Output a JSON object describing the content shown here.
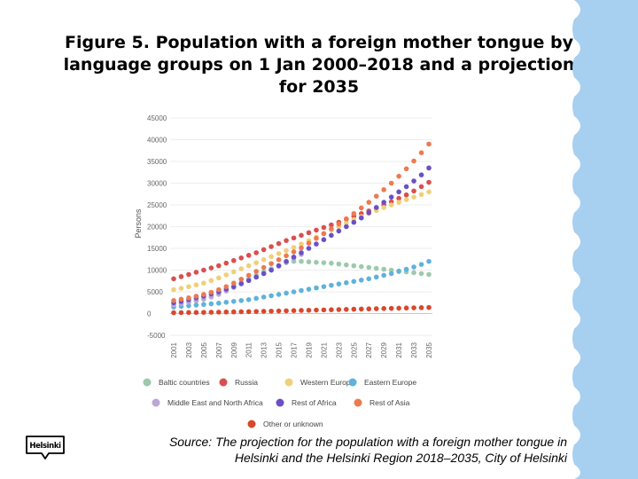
{
  "slide": {
    "title": "Figure 5. Population with a foreign mother tongue by language groups on 1 Jan 2000–2018 and a projection for 2035",
    "source": "Source: The projection for the population with a foreign mother tongue in Helsinki and the Helsinki Region 2018–2035, City of Helsinki",
    "logo_text": "Helsinki",
    "decor_color": "#a7cff0"
  },
  "chart_data": {
    "type": "scatter",
    "title": "",
    "xlabel": "",
    "ylabel": "Persons",
    "ylim": [
      -5000,
      45000
    ],
    "y_ticks": [
      "45000",
      "40000",
      "35000",
      "30000",
      "25000",
      "20000",
      "15000",
      "10000",
      "5000",
      "0",
      "-5000"
    ],
    "x_ticks": [
      "2001",
      "2003",
      "2005",
      "2007",
      "2009",
      "2011",
      "2013",
      "2015",
      "2017",
      "2019",
      "2021",
      "2023",
      "2025",
      "2027",
      "2029",
      "2031",
      "2033",
      "2035"
    ],
    "x_start": 2001,
    "grid": "horizontal",
    "legend_position": "bottom",
    "series": [
      {
        "name": "Baltic countries",
        "color": "#9cc9ac",
        "values": [
          2000,
          2300,
          2600,
          2900,
          3300,
          3800,
          4400,
          5200,
          6100,
          7000,
          8000,
          8800,
          9600,
          10300,
          11000,
          11700,
          12000,
          12000,
          11900,
          11800,
          11700,
          11600,
          11400,
          11200,
          11000,
          10800,
          10600,
          10400,
          10200,
          10000,
          9800,
          9600,
          9400,
          9200,
          9000
        ]
      },
      {
        "name": "Russia",
        "color": "#d94f50",
        "values": [
          8000,
          8500,
          9000,
          9500,
          10000,
          10500,
          11000,
          11600,
          12200,
          12800,
          13400,
          14000,
          14700,
          15400,
          16100,
          16800,
          17400,
          18000,
          18600,
          19200,
          19800,
          20400,
          21000,
          21700,
          22400,
          23000,
          23600,
          24300,
          25000,
          25700,
          26500,
          27300,
          28200,
          29200,
          30200
        ]
      },
      {
        "name": "Western Europe",
        "color": "#f0cf77",
        "values": [
          5500,
          5800,
          6200,
          6600,
          7000,
          7600,
          8200,
          8900,
          9600,
          10300,
          11000,
          11700,
          12400,
          13100,
          13800,
          14500,
          15200,
          16000,
          16800,
          17600,
          18400,
          19200,
          20000,
          20800,
          21600,
          22300,
          23000,
          23700,
          24400,
          25000,
          25600,
          26200,
          26800,
          27400,
          28000
        ]
      },
      {
        "name": "Eastern Europe",
        "color": "#5fb2dc",
        "values": [
          1500,
          1650,
          1800,
          1950,
          2100,
          2250,
          2400,
          2600,
          2800,
          3000,
          3200,
          3500,
          3800,
          4100,
          4400,
          4700,
          5000,
          5300,
          5600,
          5900,
          6200,
          6500,
          6800,
          7100,
          7400,
          7700,
          8000,
          8400,
          8800,
          9200,
          9700,
          10200,
          10700,
          11300,
          12000
        ]
      },
      {
        "name": "Middle East and North Africa",
        "color": "#bba6d6",
        "values": [
          2000,
          2300,
          2600,
          3000,
          3400,
          3900,
          4500,
          5200,
          6000,
          6800,
          7600,
          8400,
          9200,
          10000,
          10900,
          11800,
          12700,
          13600
        ]
      },
      {
        "name": "Rest of Africa",
        "color": "#6a4fc7",
        "values": [
          2500,
          2800,
          3200,
          3600,
          4000,
          4500,
          5000,
          5600,
          6200,
          6900,
          7600,
          8400,
          9200,
          10000,
          11000,
          12000,
          13000,
          14000,
          15000,
          16000,
          17000,
          18000,
          19000,
          20000,
          21000,
          22000,
          23200,
          24400,
          25600,
          26800,
          28000,
          29200,
          30500,
          31900,
          33500
        ]
      },
      {
        "name": "Rest of Asia",
        "color": "#ec7a51",
        "values": [
          3000,
          3300,
          3600,
          4000,
          4400,
          4900,
          5500,
          6200,
          7000,
          7900,
          8800,
          9700,
          10600,
          11500,
          12400,
          13300,
          14200,
          15100,
          16200,
          17300,
          18400,
          19500,
          20600,
          21800,
          23000,
          24300,
          25600,
          27000,
          28500,
          30000,
          31600,
          33300,
          35100,
          37000,
          39000
        ]
      },
      {
        "name": "Other or unknown",
        "color": "#d9472c",
        "values": [
          200,
          220,
          240,
          260,
          280,
          300,
          330,
          360,
          390,
          420,
          450,
          480,
          520,
          560,
          600,
          640,
          680,
          720,
          760,
          800,
          840,
          880,
          920,
          960,
          1000,
          1040,
          1080,
          1120,
          1160,
          1200,
          1240,
          1280,
          1320,
          1360,
          1400
        ]
      }
    ]
  }
}
